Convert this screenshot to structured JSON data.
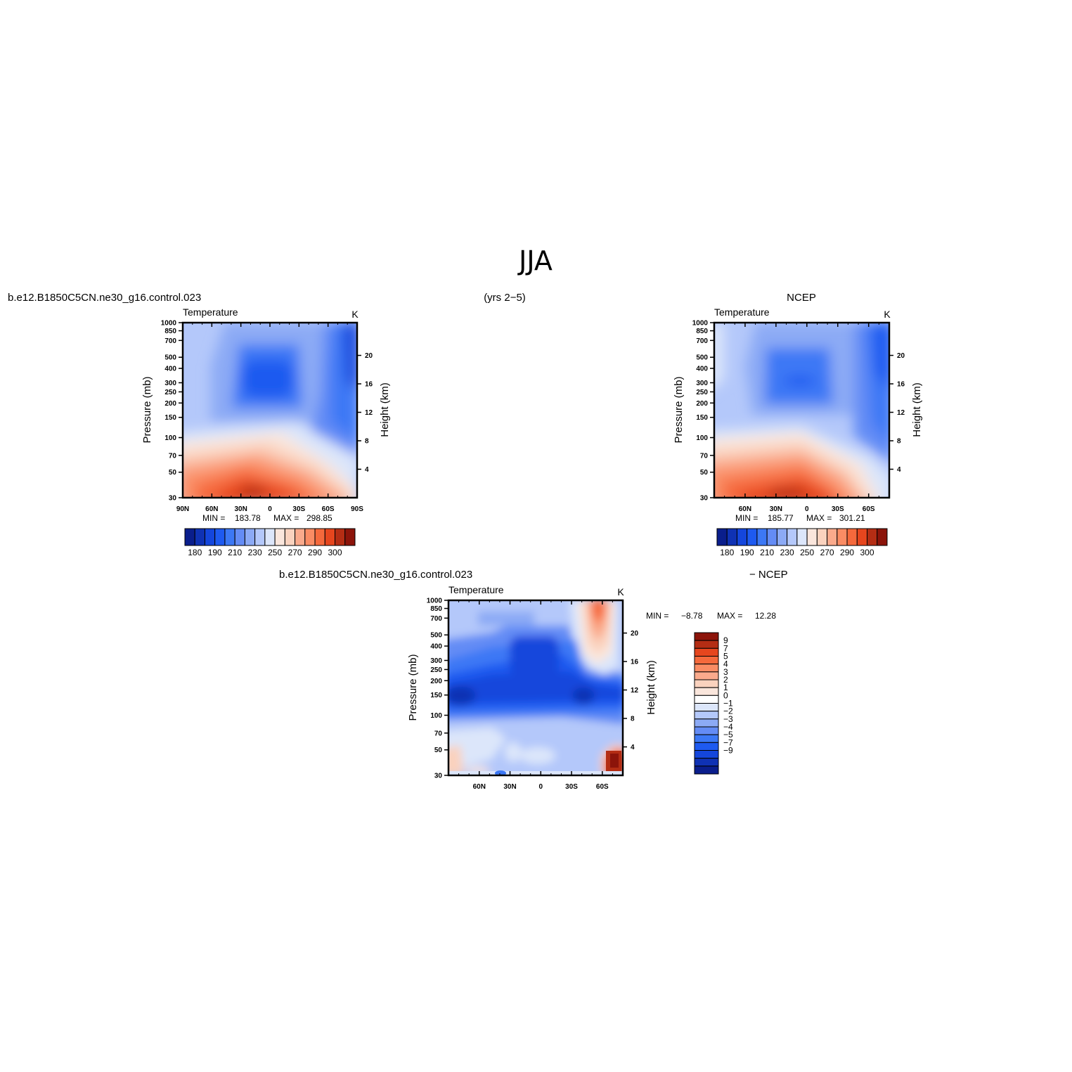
{
  "page": {
    "title": "JJA",
    "years_label": "(yrs 2−5)"
  },
  "colors": {
    "temp_scale": [
      "#0a1e8c",
      "#0f32b4",
      "#1446dc",
      "#1e5af0",
      "#3c78f5",
      "#648cf5",
      "#8caaf5",
      "#b4c8fa",
      "#dce6fa",
      "#fae6dc",
      "#fad2be",
      "#faaa8c",
      "#fa8c64",
      "#f5693c",
      "#e6461e",
      "#b42d14",
      "#8c140a"
    ],
    "diff_scale": [
      "#0a1e8c",
      "#0f32b4",
      "#1446dc",
      "#1e5af0",
      "#3c78f5",
      "#648cf5",
      "#8caaf5",
      "#b4c8fa",
      "#dce6fa",
      "#ffffff",
      "#fae6dc",
      "#fad2be",
      "#faaa8c",
      "#fa8c64",
      "#f5693c",
      "#e6461e",
      "#b42d14",
      "#8c140a"
    ]
  },
  "chart_data": [
    {
      "type": "heatmap",
      "panel": "model",
      "left_title": "b.e12.B1850C5CN.ne30_g16.control.023",
      "field": "Temperature",
      "units": "K",
      "ylabel": "Pressure (mb)",
      "y2label": "Height (km)",
      "x_ticks": [
        "90N",
        "60N",
        "30N",
        "0",
        "30S",
        "60S",
        "90S"
      ],
      "x_values": [
        90,
        60,
        30,
        0,
        -30,
        -60,
        -90
      ],
      "y_ticks": [
        30,
        50,
        70,
        100,
        150,
        200,
        250,
        300,
        400,
        500,
        700,
        850,
        1000
      ],
      "y2_ticks": [
        20,
        16,
        12,
        8,
        4
      ],
      "ylim": [
        1000,
        30
      ],
      "log_scale_y": true,
      "min_label": "MIN =",
      "min": "183.78",
      "max_label": "MAX =",
      "max": "298.85",
      "colorbar_labels": [
        "180",
        "190",
        "210",
        "230",
        "250",
        "270",
        "290",
        "300"
      ]
    },
    {
      "type": "heatmap",
      "panel": "obs",
      "center_title": "NCEP",
      "field": "Temperature",
      "units": "K",
      "ylabel": "Pressure (mb)",
      "y2label": "Height (km)",
      "x_ticks": [
        "60N",
        "30N",
        "0",
        "30S",
        "60S"
      ],
      "x_values": [
        60,
        30,
        0,
        -30,
        -60
      ],
      "y_ticks": [
        30,
        50,
        70,
        100,
        150,
        200,
        250,
        300,
        400,
        500,
        700,
        850,
        1000
      ],
      "y2_ticks": [
        20,
        16,
        12,
        8,
        4
      ],
      "ylim": [
        1000,
        30
      ],
      "log_scale_y": true,
      "min_label": "MIN =",
      "min": "185.77",
      "max_label": "MAX =",
      "max": "301.21",
      "colorbar_labels": [
        "180",
        "190",
        "210",
        "230",
        "250",
        "270",
        "290",
        "300"
      ]
    },
    {
      "type": "heatmap",
      "panel": "difference",
      "left_title": "b.e12.B1850C5CN.ne30_g16.control.023",
      "right_title": "− NCEP",
      "field": "Temperature",
      "units": "K",
      "ylabel": "Pressure (mb)",
      "y2label": "Height (km)",
      "x_ticks": [
        "60N",
        "30N",
        "0",
        "30S",
        "60S"
      ],
      "x_values": [
        60,
        30,
        0,
        -30,
        -60
      ],
      "y_ticks": [
        30,
        50,
        70,
        100,
        150,
        200,
        250,
        300,
        400,
        500,
        700,
        850,
        1000
      ],
      "y2_ticks": [
        20,
        16,
        12,
        8,
        4
      ],
      "ylim": [
        1000,
        30
      ],
      "log_scale_y": true,
      "min_label": "MIN =",
      "min": "−8.78",
      "max_label": "MAX =",
      "max": "12.28",
      "colorbar_labels": [
        "9",
        "7",
        "5",
        "4",
        "3",
        "2",
        "1",
        "0",
        "−1",
        "−2",
        "−3",
        "−4",
        "−5",
        "−7",
        "−9"
      ]
    }
  ]
}
